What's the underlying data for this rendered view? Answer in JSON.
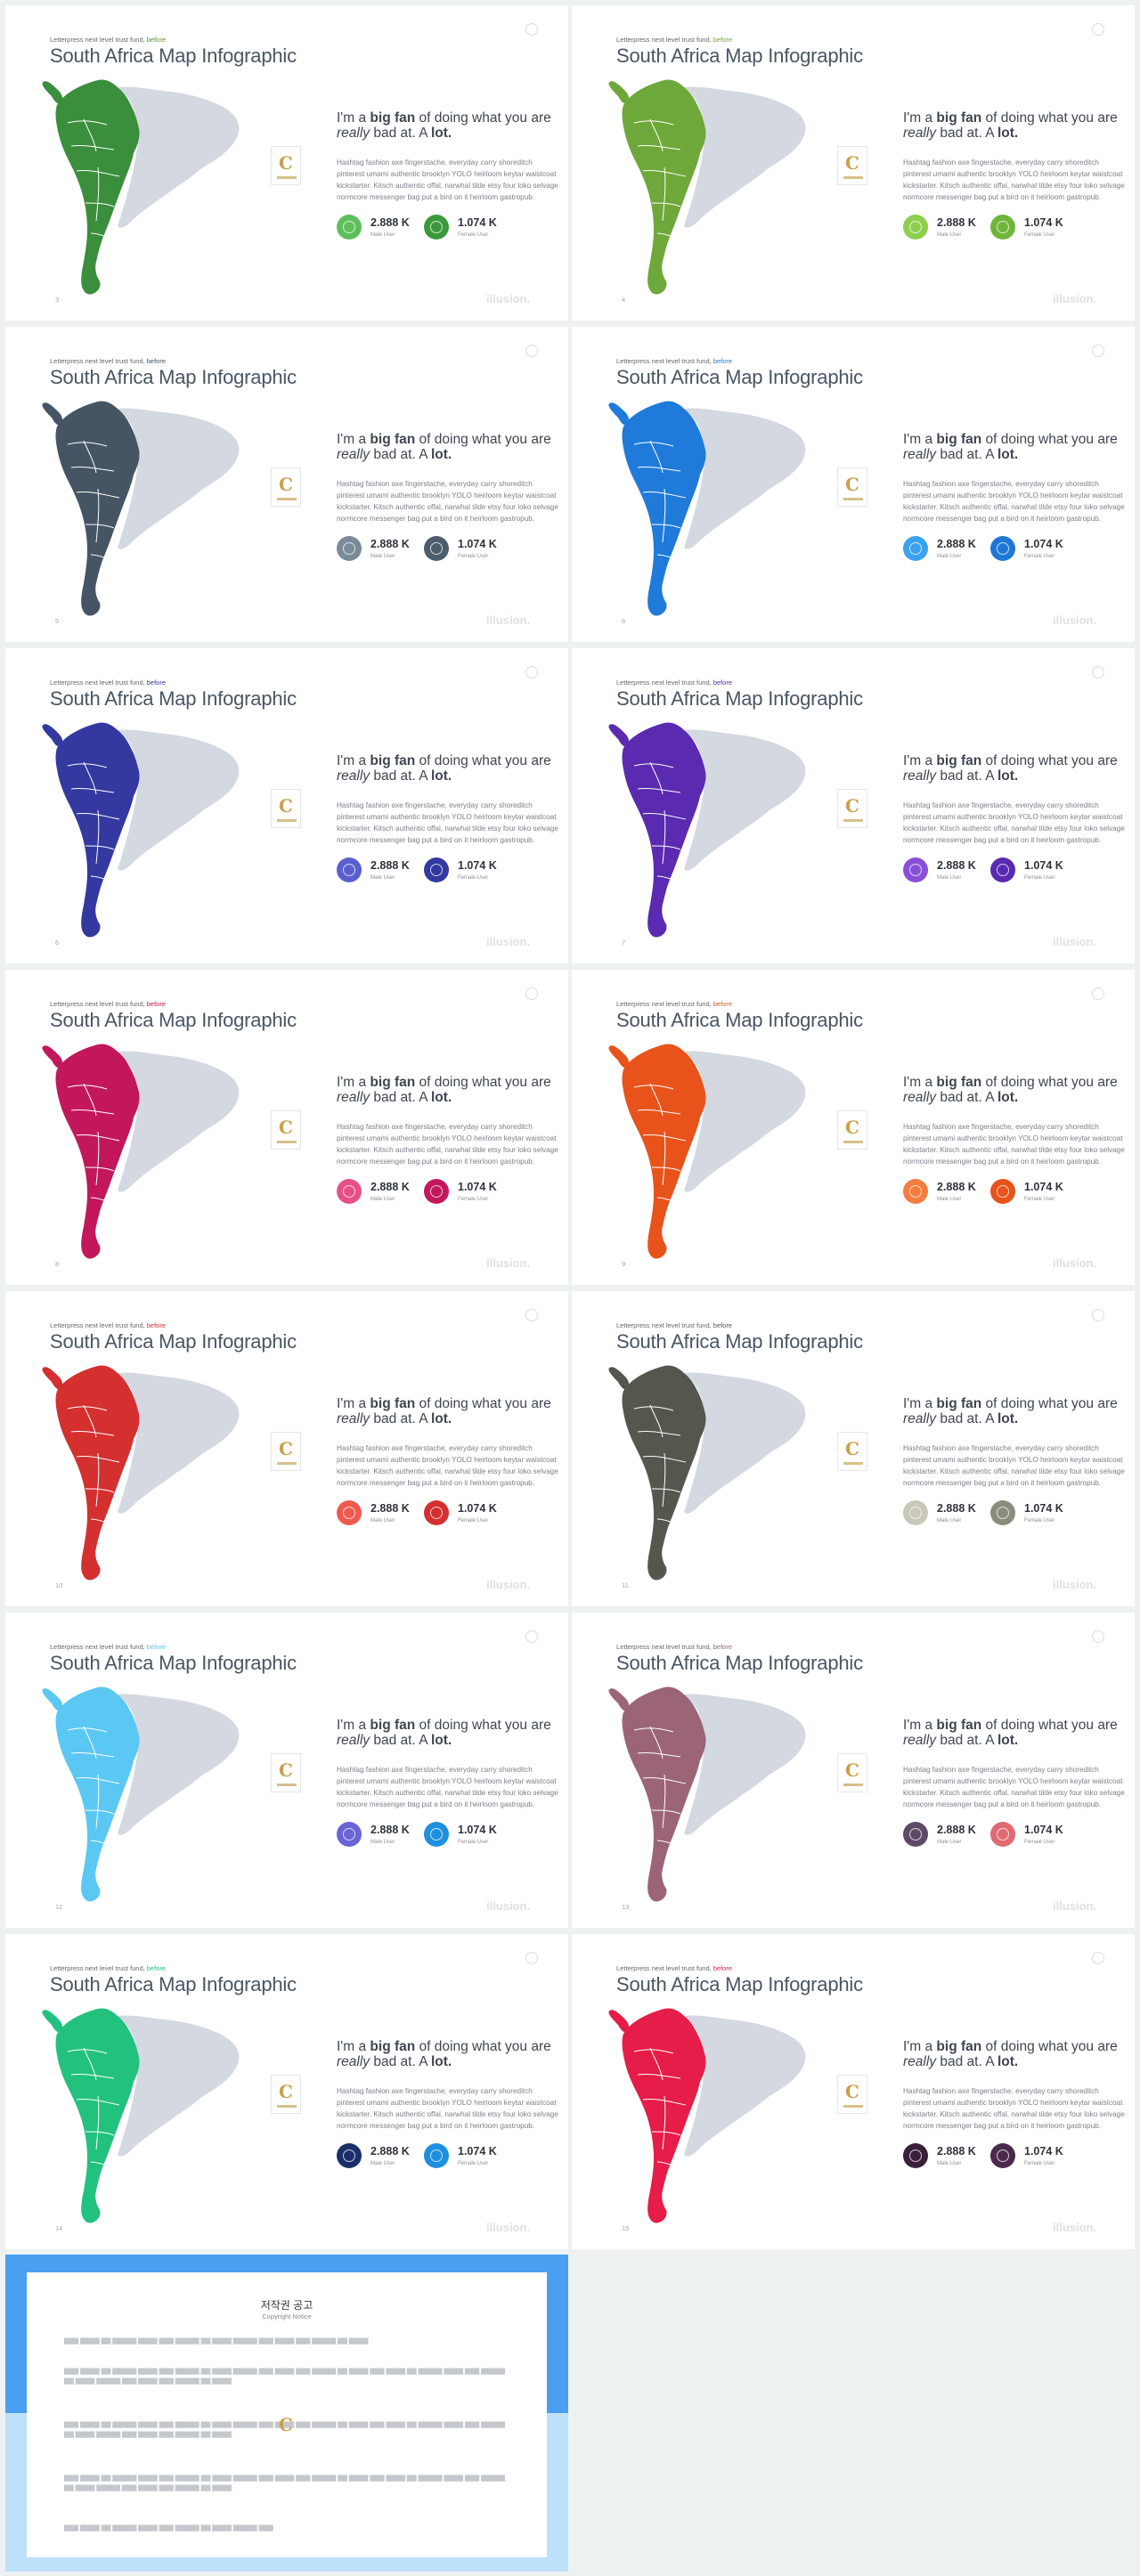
{
  "slide_common": {
    "label": "Letterpress next level trust fund,",
    "label_accent": "before",
    "title": "South Africa Map Infographic",
    "head_pre": "I'm a ",
    "head_b1": "big fan",
    "head_mid": " of doing what you are ",
    "head_i": "really",
    "head_mid2": " bad at. A ",
    "head_b2": "lot.",
    "body": "Hashtag fashion axe fingerstache, everyday carry shoreditch pinterest umami authentic brooklyn YOLO heirloom keytar waistcoat kickstarter. Kitsch authentic offal, narwhal tilde etsy four loko selvage normcore messenger bag put a bird on it heirloom gastropub.",
    "stat1_value": "2.888 K",
    "stat1_label": "Male User",
    "stat2_value": "1.074 K",
    "stat2_label": "Female User",
    "brand": "illusion.",
    "logo_letter": "C"
  },
  "slides": [
    {
      "page": "3",
      "map": "#3b8e3c",
      "c1": "#5fbf5c",
      "c2": "#3a9a3b",
      "accent": "#5b8f3a"
    },
    {
      "page": "4",
      "map": "#6ea83a",
      "c1": "#8fcf4f",
      "c2": "#6fb63a",
      "accent": "#6ea83a"
    },
    {
      "page": "5",
      "map": "#455563",
      "c1": "#7a8b98",
      "c2": "#4c5d6c",
      "accent": "#455563"
    },
    {
      "page": "6",
      "map": "#1f7ad9",
      "c1": "#3aa3f0",
      "c2": "#1f78d6",
      "accent": "#1f7ad9"
    },
    {
      "page": "6",
      "map": "#33399f",
      "c1": "#5a5fcf",
      "c2": "#33399f",
      "accent": "#33399f"
    },
    {
      "page": "7",
      "map": "#5a2ab0",
      "c1": "#8a4fd8",
      "c2": "#5a2ab0",
      "accent": "#5a2ab0"
    },
    {
      "page": "8",
      "map": "#c2185b",
      "c1": "#e84f8a",
      "c2": "#c2185b",
      "accent": "#c2185b"
    },
    {
      "page": "9",
      "map": "#e8531b",
      "c1": "#f57d3f",
      "c2": "#e8531b",
      "accent": "#e8531b"
    },
    {
      "page": "10",
      "map": "#d3302f",
      "c1": "#ef5a4f",
      "c2": "#d3302f",
      "accent": "#d3302f"
    },
    {
      "page": "11",
      "map": "#55574f",
      "c1": "#c9c8b8",
      "c2": "#8c8c7c",
      "accent": "#55574f"
    },
    {
      "page": "12",
      "map": "#5ac8f2",
      "c1": "#6a64d8",
      "c2": "#1f8fe0",
      "accent": "#5ac8f2"
    },
    {
      "page": "13",
      "map": "#9c6577",
      "c1": "#5e4a66",
      "c2": "#e06a72",
      "accent": "#9c6577"
    },
    {
      "page": "14",
      "map": "#22c27e",
      "c1": "#1a2f6a",
      "c2": "#1f8fe0",
      "accent": "#22c27e"
    },
    {
      "page": "15",
      "map": "#e51d48",
      "c1": "#3a1f3a",
      "c2": "#4a2a4a",
      "accent": "#e51d48"
    }
  ],
  "copyright": {
    "title": "저작권 공고",
    "subtitle": "Copyright Notice"
  }
}
